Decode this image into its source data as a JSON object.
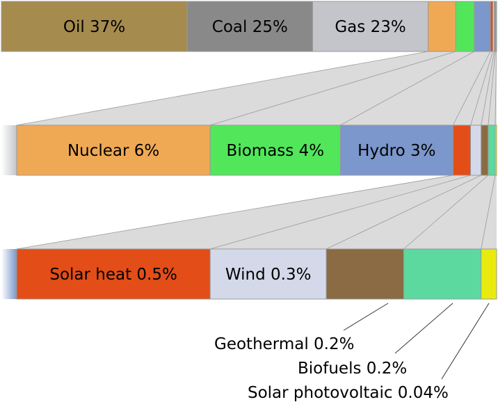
{
  "chart_data": {
    "type": "bar",
    "subtype": "stacked-breakdown",
    "unit": "%",
    "title": "",
    "xlabel": "",
    "ylabel": "",
    "colors": {
      "oil": "#a68b4f",
      "coal": "#898989",
      "gas": "#c3c5ca",
      "nuclear": "#efa955",
      "biomass": "#52e65b",
      "hydro": "#7b97cb",
      "solar_heat": "#e34d18",
      "wind": "#d4d9ea",
      "geothermal": "#8b6b43",
      "biofuels": "#5bd99f",
      "solar_pv": "#e9eb10",
      "border": "#9a9a9a",
      "zoom_fill": "#bdbdbd",
      "zoom_line": "#9a9a9a"
    },
    "rows": [
      {
        "segments": [
          {
            "key": "oil",
            "label": "Oil 37%",
            "value": 37
          },
          {
            "key": "coal",
            "label": "Coal 25%",
            "value": 25
          },
          {
            "key": "gas",
            "label": "Gas 23%",
            "value": 23
          },
          {
            "key": "nuclear",
            "label": "",
            "value": 5.5
          },
          {
            "key": "biomass",
            "label": "",
            "value": 3.7
          },
          {
            "key": "hydro",
            "label": "",
            "value": 3.2
          },
          {
            "key": "solar_heat",
            "label": "",
            "value": 0.5
          },
          {
            "key": "wind",
            "label": "",
            "value": 0.3
          },
          {
            "key": "geothermal",
            "label": "",
            "value": 0.2
          },
          {
            "key": "biofuels",
            "label": "",
            "value": 0.2
          },
          {
            "key": "solar_pv",
            "label": "",
            "value": 0.04
          }
        ]
      },
      {
        "segments": [
          {
            "key": "nuclear",
            "label": "Nuclear 6%",
            "value": 5.5
          },
          {
            "key": "biomass",
            "label": "Biomass 4%",
            "value": 3.7
          },
          {
            "key": "hydro",
            "label": "Hydro 3%",
            "value": 3.2
          },
          {
            "key": "solar_heat",
            "label": "",
            "value": 0.5
          },
          {
            "key": "wind",
            "label": "",
            "value": 0.3
          },
          {
            "key": "geothermal",
            "label": "",
            "value": 0.2
          },
          {
            "key": "biofuels",
            "label": "",
            "value": 0.2
          },
          {
            "key": "solar_pv",
            "label": "",
            "value": 0.04
          }
        ]
      },
      {
        "segments": [
          {
            "key": "solar_heat",
            "label": "Solar heat 0.5%",
            "value": 0.5
          },
          {
            "key": "wind",
            "label": "Wind 0.3%",
            "value": 0.3
          },
          {
            "key": "geothermal",
            "label": "",
            "value": 0.2
          },
          {
            "key": "biofuels",
            "label": "",
            "value": 0.2
          },
          {
            "key": "solar_pv",
            "label": "",
            "value": 0.04
          }
        ]
      }
    ],
    "callouts": [
      {
        "key": "geothermal",
        "label": "Geothermal 0.2%"
      },
      {
        "key": "biofuels",
        "label": "Biofuels 0.2%"
      },
      {
        "key": "solar_pv",
        "label": "Solar photovoltaic 0.04%"
      }
    ]
  }
}
